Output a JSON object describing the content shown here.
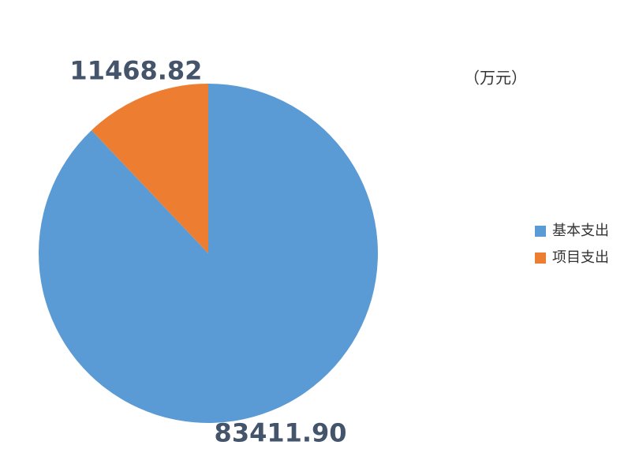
{
  "chart_data": {
    "type": "pie",
    "subtitle": "（万元）",
    "categories": [
      "基本支出",
      "项目支出"
    ],
    "values": [
      83411.9,
      11468.82
    ],
    "value_labels": [
      "83411.90",
      "11468.82"
    ],
    "colors": [
      "#5b9bd5",
      "#ed7d31"
    ],
    "legend": "right"
  }
}
